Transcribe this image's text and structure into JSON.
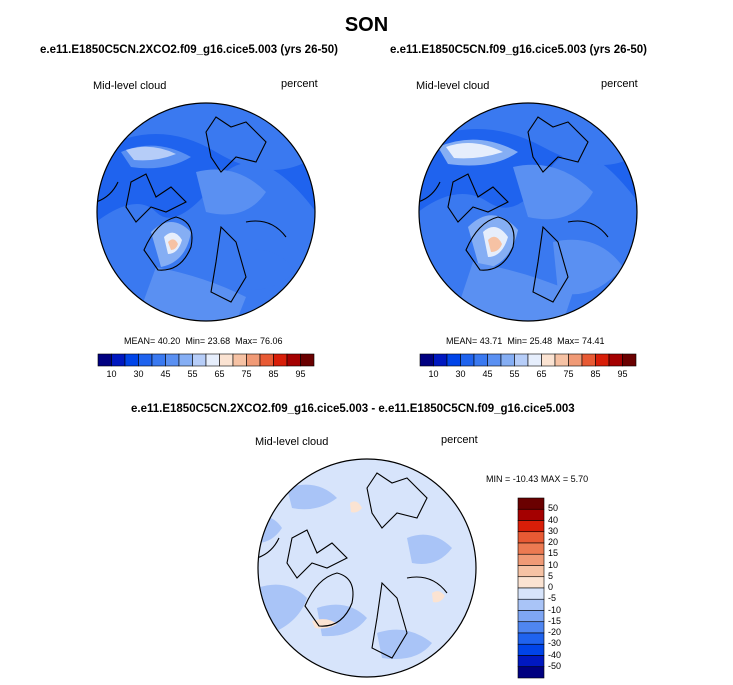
{
  "chart_data": [
    {
      "type": "heatmap",
      "title": "SON",
      "subtitle": "e.e11.E1850C5CN.2XCO2.f09_g16.cice5.003 (yrs 26-50)",
      "left_label": "Mid-level cloud",
      "right_label": "percent",
      "stats": {
        "mean_label": "MEAN=",
        "mean": "40.20",
        "min_label": "Min=",
        "min": "23.68",
        "max_label": "Max=",
        "max": "76.06"
      },
      "colorbar": {
        "orientation": "horizontal",
        "levels": [
          10,
          20,
          30,
          40,
          45,
          50,
          55,
          60,
          65,
          70,
          75,
          80,
          85,
          90,
          95
        ],
        "tick_labels": [
          "10",
          "30",
          "45",
          "55",
          "65",
          "75",
          "85",
          "95"
        ],
        "colors": [
          "#000080",
          "#0018c0",
          "#0044e8",
          "#1f63ee",
          "#3a79f0",
          "#5a90f2",
          "#85aef4",
          "#b6cdf8",
          "#e6eefc",
          "#fbe3d2",
          "#f6c2a4",
          "#f09a76",
          "#e85a34",
          "#d81e08",
          "#a40000",
          "#6a0000"
        ]
      }
    },
    {
      "type": "heatmap",
      "subtitle": "e.e11.E1850C5CN.f09_g16.cice5.003 (yrs 26-50)",
      "left_label": "Mid-level cloud",
      "right_label": "percent",
      "stats": {
        "mean_label": "MEAN=",
        "mean": "43.71",
        "min_label": "Min=",
        "min": "25.48",
        "max_label": "Max=",
        "max": "74.41"
      },
      "colorbar": {
        "orientation": "horizontal",
        "levels": [
          10,
          20,
          30,
          40,
          45,
          50,
          55,
          60,
          65,
          70,
          75,
          80,
          85,
          90,
          95
        ],
        "tick_labels": [
          "10",
          "30",
          "45",
          "55",
          "65",
          "75",
          "85",
          "95"
        ],
        "colors": [
          "#000080",
          "#0018c0",
          "#0044e8",
          "#1f63ee",
          "#3a79f0",
          "#5a90f2",
          "#85aef4",
          "#b6cdf8",
          "#e6eefc",
          "#fbe3d2",
          "#f6c2a4",
          "#f09a76",
          "#e85a34",
          "#d81e08",
          "#a40000",
          "#6a0000"
        ]
      }
    },
    {
      "type": "heatmap",
      "subtitle": "e.e11.E1850C5CN.2XCO2.f09_g16.cice5.003 - e.e11.E1850C5CN.f09_g16.cice5.003",
      "left_label": "Mid-level cloud",
      "right_label": "percent",
      "stats": {
        "min_label": "MIN =",
        "min": "-10.43",
        "max_label": "MAX =",
        "max": "5.70"
      },
      "colorbar": {
        "orientation": "vertical",
        "levels": [
          -50,
          -40,
          -30,
          -20,
          -15,
          -10,
          -5,
          0,
          5,
          10,
          15,
          20,
          30,
          40,
          50
        ],
        "tick_labels": [
          "50",
          "40",
          "30",
          "20",
          "15",
          "10",
          "5",
          "0",
          "-5",
          "-10",
          "-15",
          "-20",
          "-30",
          "-40",
          "-50"
        ],
        "colors": [
          "#000080",
          "#0018c0",
          "#0044e8",
          "#1f63ee",
          "#4f86f1",
          "#7ea6f4",
          "#a9c4f7",
          "#d7e4fb",
          "#fbe3d2",
          "#f6c2a4",
          "#f09a76",
          "#ec7a52",
          "#e85a34",
          "#d81e08",
          "#a40000",
          "#6a0000"
        ]
      }
    }
  ]
}
